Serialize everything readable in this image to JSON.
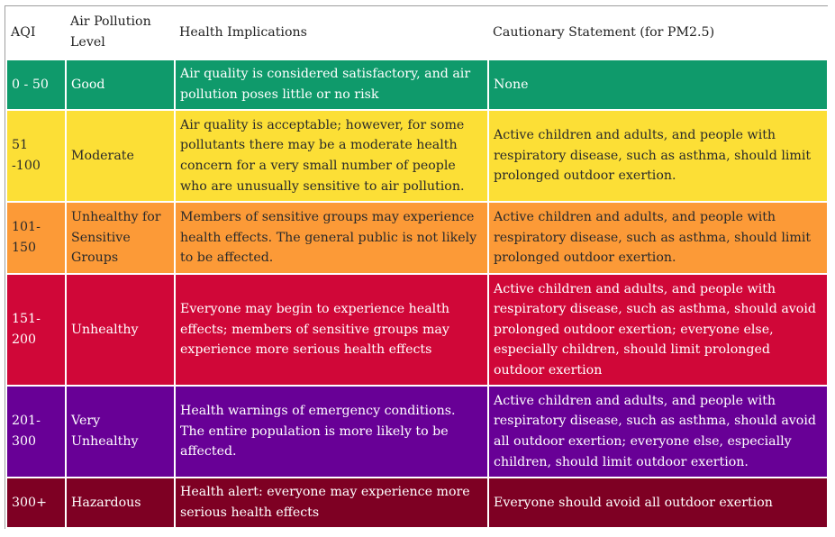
{
  "table": {
    "headers": [
      "AQI",
      "Air Pollution Level",
      "Health Implications",
      "Cautionary Statement (for PM2.5)"
    ],
    "rows": [
      {
        "aqi": "0 - 50",
        "level": "Good",
        "health": "Air quality is considered satisfactory, and air pollution poses little or no risk",
        "caution": "None",
        "color": "#0f9a6b"
      },
      {
        "aqi": "51 -100",
        "level": "Moderate",
        "health": "Air quality is acceptable; however, for some pollutants there may be a moderate health concern for a very small number of people who are unusually sensitive to air pollution.",
        "caution": "Active children and adults, and people with respiratory disease, such as asthma, should limit prolonged outdoor exertion.",
        "color": "#fcdf36"
      },
      {
        "aqi": "101-150",
        "level": "Unhealthy for Sensitive Groups",
        "health": "Members of sensitive groups may experience health effects. The general public is not likely to be affected.",
        "caution": "Active children and adults, and people with respiratory disease, such as asthma, should limit prolonged outdoor exertion.",
        "color": "#fc9a37"
      },
      {
        "aqi": "151-200",
        "level": "Unhealthy",
        "health": "Everyone may begin to experience health effects; members of sensitive groups may experience more serious health effects",
        "caution": "Active children and adults, and people with respiratory disease, such as asthma, should avoid prolonged outdoor exertion; everyone else, especially children, should limit prolonged outdoor exertion",
        "color": "#d00738"
      },
      {
        "aqi": "201-300",
        "level": "Very Unhealthy",
        "health": "Health warnings of emergency conditions. The entire population is more likely to be affected.",
        "caution": "Active children and adults, and people with respiratory disease, such as asthma, should avoid all outdoor exertion; everyone else, especially children, should limit outdoor exertion.",
        "color": "#680096"
      },
      {
        "aqi": "300+",
        "level": "Hazardous",
        "health": "Health alert: everyone may experience more serious health effects",
        "caution": "Everyone should avoid all outdoor exertion",
        "color": "#7e0023"
      }
    ]
  }
}
